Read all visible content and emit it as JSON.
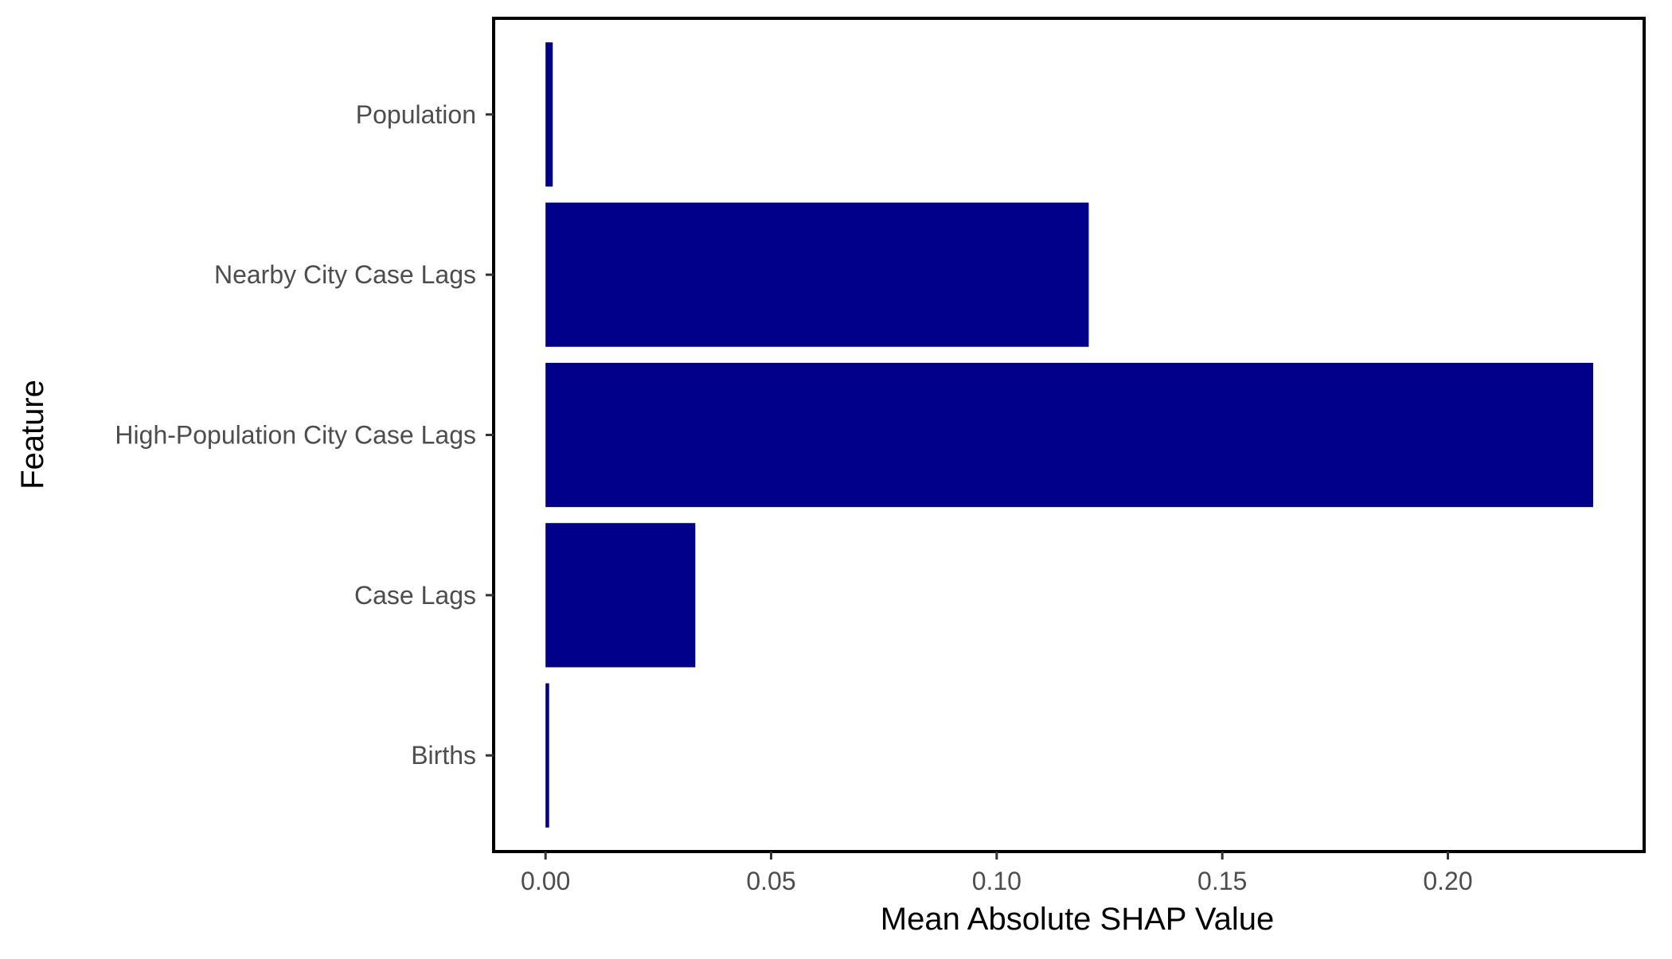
{
  "chart_data": {
    "type": "bar",
    "orientation": "horizontal",
    "categories": [
      "Births",
      "Case Lags",
      "High-Population City Case Lags",
      "Nearby City Case Lags",
      "Population"
    ],
    "values": [
      0.0008,
      0.0332,
      0.2322,
      0.1204,
      0.0016
    ],
    "xlabel": "Mean Absolute SHAP Value",
    "ylabel": "Feature",
    "xlim": [
      -0.0115,
      0.2435
    ],
    "x_ticks": [
      0.0,
      0.05,
      0.1,
      0.15,
      0.2
    ],
    "x_tick_labels": [
      "0.00",
      "0.05",
      "0.10",
      "0.15",
      "0.20"
    ],
    "grid": false,
    "legend": "none",
    "bar_color": "#00008B",
    "panel_border_color": "#000000"
  }
}
